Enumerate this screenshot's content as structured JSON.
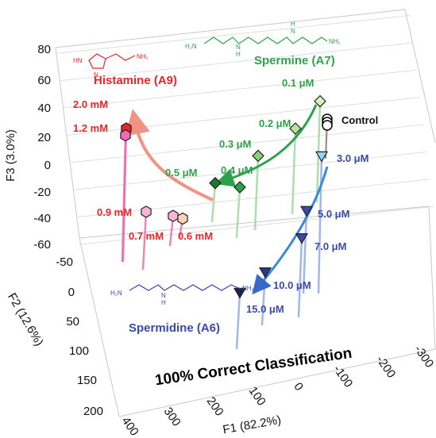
{
  "chart_data": {
    "type": "scatter",
    "projection": "3d",
    "xlabel": "F1 (82.2%)",
    "ylabel": "F2 (12.6%)",
    "zlabel": "F3 (3.0%)",
    "x_ticks": [
      "400",
      "300",
      "200",
      "100",
      "0",
      "-100",
      "-200",
      "-300"
    ],
    "y_ticks": [
      "-50",
      "0",
      "50",
      "100",
      "150",
      "200"
    ],
    "z_ticks": [
      "80",
      "60",
      "40",
      "20",
      "0",
      "-20",
      "-40",
      "-60"
    ],
    "annotation": "100% Correct Classification",
    "control_label": "Control",
    "colors": {
      "histamine": "#e8262a",
      "spermine": "#2ea24a",
      "spermidine": "#3a4aa6",
      "control": "#000000"
    },
    "series": [
      {
        "name": "Histamine (A9)",
        "structure_labels": [
          "HN",
          "N",
          "NH₂"
        ],
        "points": [
          {
            "label": "2.0 mM",
            "z": 25
          },
          {
            "label": "1.2 mM",
            "z": 20
          },
          {
            "label": "0.9 mM",
            "z": -36
          },
          {
            "label": "0.7 mM",
            "z": -39
          },
          {
            "label": "0.6 mM",
            "z": -41
          }
        ]
      },
      {
        "name": "Spermine (A7)",
        "structure_labels": [
          "H₂N",
          "N",
          "H",
          "N",
          "H",
          "NH₂"
        ],
        "points": [
          {
            "label": "0.1 μM",
            "z": 45
          },
          {
            "label": "0.2 μM",
            "z": 25
          },
          {
            "label": "0.3 μM",
            "z": 5
          },
          {
            "label": "0.4 μM",
            "z": -18
          },
          {
            "label": "0.5 μM",
            "z": -15
          }
        ]
      },
      {
        "name": "Spermidine (A6)",
        "structure_labels": [
          "H₂N",
          "N",
          "H",
          "NH₂"
        ],
        "points": [
          {
            "label": "3.0 μM",
            "z": 5
          },
          {
            "label": "5.0 μM",
            "z": -35
          },
          {
            "label": "7.0 μM",
            "z": -55
          },
          {
            "label": "10.0 μM",
            "z": -80
          },
          {
            "label": "15.0 μM",
            "z": -95
          }
        ]
      }
    ]
  }
}
